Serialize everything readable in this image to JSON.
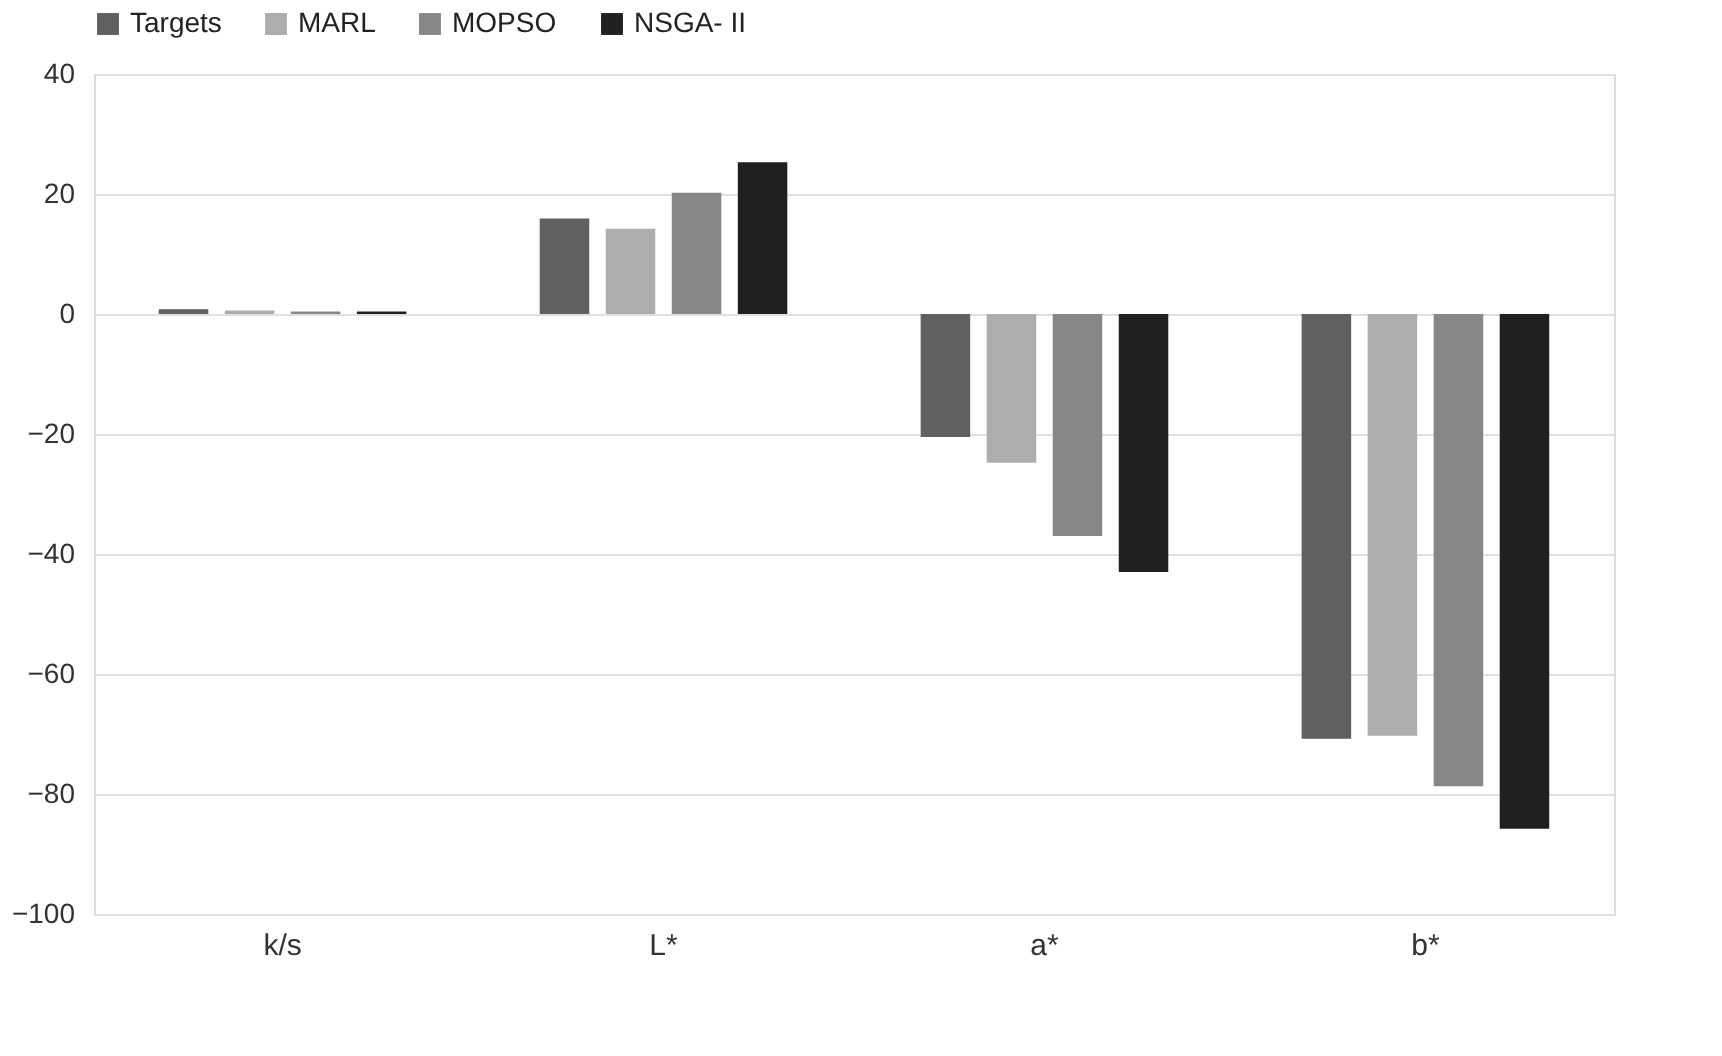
{
  "chart_data": {
    "type": "bar",
    "categories": [
      "k/s",
      "L*",
      "a*",
      "b*"
    ],
    "series": [
      {
        "name": "Targets",
        "color": "#606060",
        "values": [
          0.8,
          15.9,
          -20.5,
          -70.8
        ]
      },
      {
        "name": "MARL",
        "color": "#adadad",
        "values": [
          0.6,
          14.2,
          -24.8,
          -70.3
        ]
      },
      {
        "name": "MOPSO",
        "color": "#878787",
        "values": [
          0.4,
          20.2,
          -37,
          -78.7
        ]
      },
      {
        "name": "NSGA- II",
        "color": "#202020",
        "values": [
          0.4,
          25.3,
          -43,
          -85.8
        ]
      }
    ],
    "ylim": [
      -100,
      40
    ],
    "yticks": [
      -100,
      -80,
      -60,
      -40,
      -20,
      0,
      20,
      40
    ],
    "grid": "y",
    "legend": "top"
  }
}
